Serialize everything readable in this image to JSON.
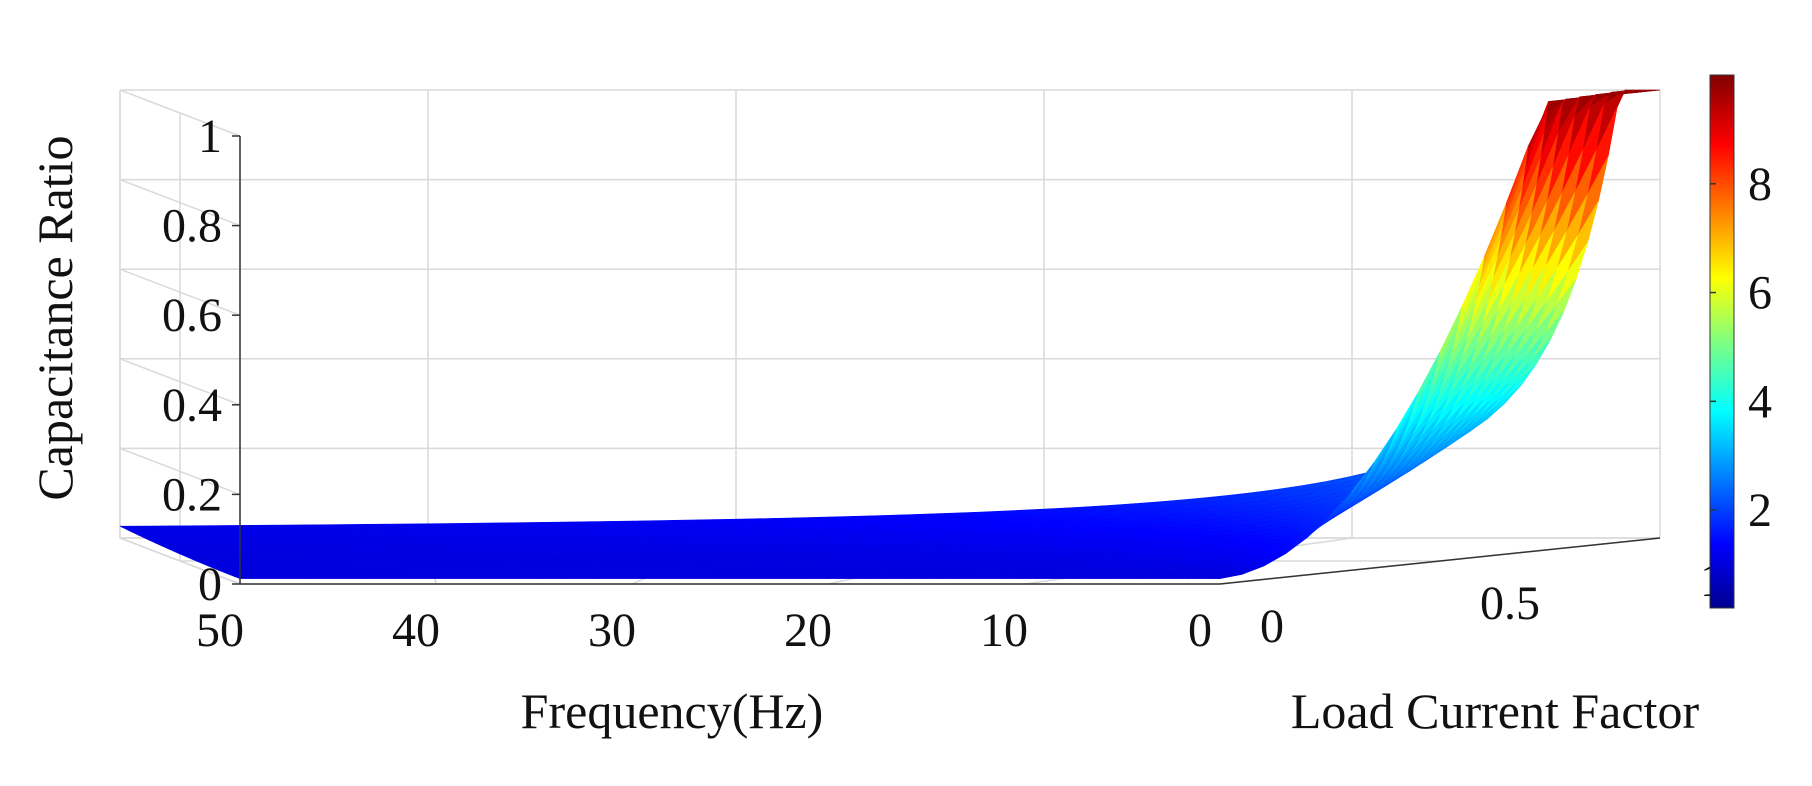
{
  "chart_data": {
    "type": "surface",
    "xlabel": "Frequency(Hz)",
    "ylabel": "Load Current Factor",
    "zlabel": "Capacitance Ratio",
    "x_ticks": [
      "50",
      "40",
      "30",
      "20",
      "10",
      "0"
    ],
    "y_ticks": [
      "0",
      "0.5",
      "1"
    ],
    "z_ticks": [
      "0",
      "0.2",
      "0.4",
      "0.6",
      "0.8",
      "1"
    ],
    "colorbar_ticks": [
      "2",
      "4",
      "6",
      "8"
    ],
    "colorbar_range": [
      0.2,
      10
    ],
    "colormap": "jet",
    "xlim": [
      0,
      50
    ],
    "ylim": [
      0,
      1
    ],
    "zlim": [
      0,
      1
    ],
    "grid": true,
    "surface_samples": [
      {
        "frequency": 50,
        "load_current_factor": 0,
        "value": 0.01
      },
      {
        "frequency": 25,
        "load_current_factor": 1,
        "value": 0.03
      },
      {
        "frequency": 10,
        "load_current_factor": 1,
        "value": 0.09
      },
      {
        "frequency": 5,
        "load_current_factor": 0.5,
        "value": 0.15
      },
      {
        "frequency": 2,
        "load_current_factor": 1,
        "value": 0.37
      },
      {
        "frequency": 0,
        "load_current_factor": 0.5,
        "value": 0.55
      },
      {
        "frequency": 0,
        "load_current_factor": 1,
        "value": 1.0
      }
    ]
  }
}
